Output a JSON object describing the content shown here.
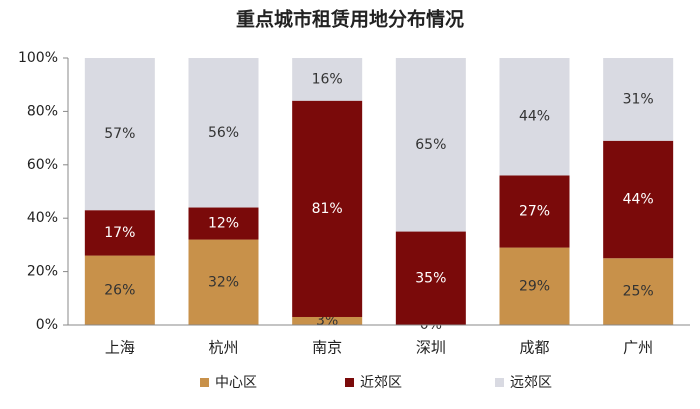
{
  "chart_data": {
    "type": "stacked_bar",
    "title": "重点城市租赁用地分布情况",
    "categories": [
      "上海",
      "杭州",
      "南京",
      "深圳",
      "成都",
      "广州"
    ],
    "series": [
      {
        "name": "中心区",
        "color": "#c8914a",
        "values": [
          26,
          32,
          3,
          0,
          29,
          25
        ],
        "value_labels": [
          "26%",
          "32%",
          "3%",
          "0%",
          "29%",
          "25%"
        ]
      },
      {
        "name": "近郊区",
        "color": "#7a0a0a",
        "values": [
          17,
          12,
          81,
          35,
          27,
          44
        ],
        "value_labels": [
          "17%",
          "12%",
          "81%",
          "35%",
          "27%",
          "44%"
        ]
      },
      {
        "name": "远郊区",
        "color": "#d9dae2",
        "values": [
          57,
          56,
          16,
          65,
          44,
          31
        ],
        "value_labels": [
          "57%",
          "56%",
          "16%",
          "65%",
          "44%",
          "31%"
        ]
      }
    ],
    "ylim": [
      0,
      100
    ],
    "yticks": [
      {
        "value": 0,
        "label": "0%"
      },
      {
        "value": 20,
        "label": "20%"
      },
      {
        "value": 40,
        "label": "40%"
      },
      {
        "value": 60,
        "label": "60%"
      },
      {
        "value": 80,
        "label": "80%"
      },
      {
        "value": 100,
        "label": "100%"
      }
    ],
    "legend": "bottom"
  }
}
